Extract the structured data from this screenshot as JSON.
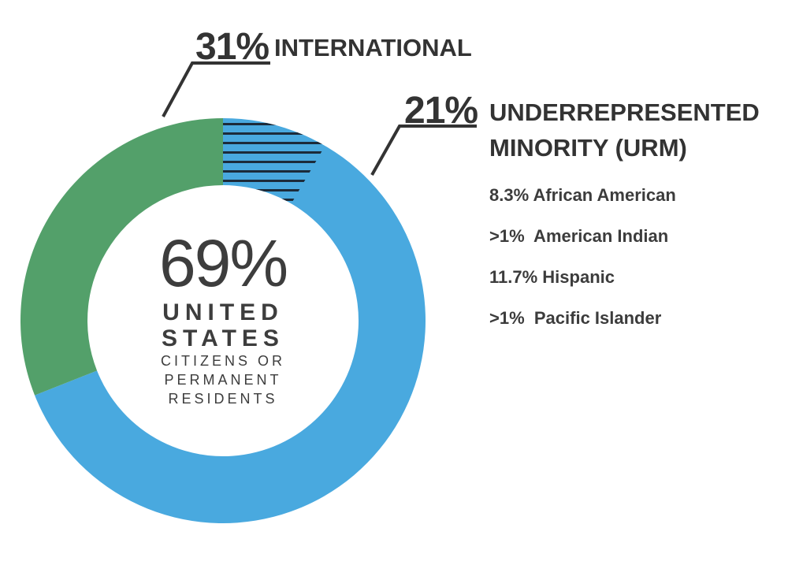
{
  "colors": {
    "international": "#53a06a",
    "us": "#49a9df",
    "urm_hatch": "#1c2b3a",
    "leader": "#333333"
  },
  "chart_data": {
    "type": "pie",
    "slices": [
      {
        "name": "International",
        "value": 31
      },
      {
        "name": "United States Citizens or Permanent Residents",
        "value": 69
      }
    ],
    "subslice": {
      "name": "Underrepresented Minority (URM)",
      "value": 21,
      "within": "United States Citizens or Permanent Residents",
      "pattern": "horizontal-hatch"
    },
    "donut": true
  },
  "callouts": {
    "international": {
      "pct": "31%",
      "label": "INTERNATIONAL"
    },
    "urm": {
      "pct": "21%",
      "label_line1": "UNDERREPRESENTED",
      "label_line2": "MINORITY (URM)"
    }
  },
  "urm_breakdown": [
    "8.3% African American",
    ">1%  American Indian",
    "11.7% Hispanic",
    ">1%  Pacific Islander"
  ],
  "center": {
    "pct": "69%",
    "line1": "UNITED",
    "line2": "STATES",
    "line3": "CITIZENS OR",
    "line4": "PERMANENT",
    "line5": "RESIDENTS"
  }
}
